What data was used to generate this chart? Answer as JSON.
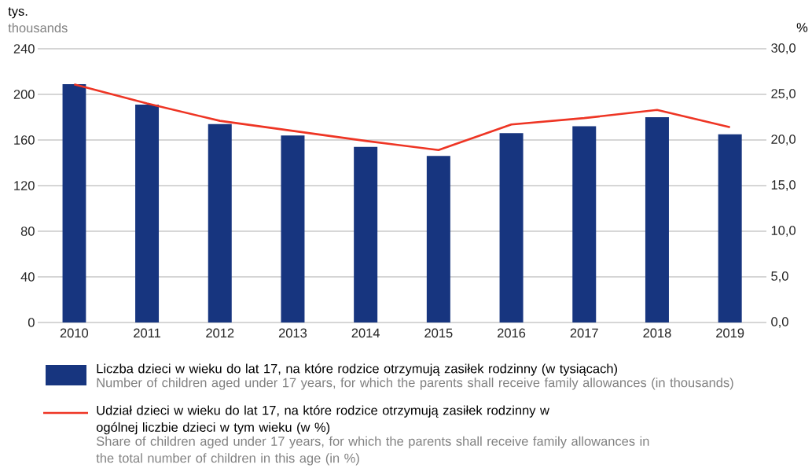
{
  "chart_data": {
    "type": "bar",
    "categories": [
      "2010",
      "2011",
      "2012",
      "2013",
      "2014",
      "2015",
      "2016",
      "2017",
      "2018",
      "2019"
    ],
    "series": [
      {
        "name": "Liczba dzieci w wieku do lat 17, na które rodzice otrzymują zasiłek rodzinny (w tysiącach)",
        "color": "#17357f",
        "values": [
          209,
          191,
          174,
          164,
          154,
          146,
          166,
          172,
          180,
          165
        ]
      },
      {
        "name": "Udział dzieci w wieku do lat 17, na które rodzice otrzymują zasiłek rodzinny w ogólnej liczbie dzieci w tym wieku (w %)",
        "type": "line",
        "axis": "y2",
        "color": "#ee3524",
        "values": [
          26.1,
          24.0,
          22.1,
          21.0,
          19.9,
          18.9,
          21.7,
          22.4,
          23.3,
          21.4
        ]
      }
    ],
    "ylabel": "tys.",
    "y2label": "%",
    "ylim": [
      0,
      240
    ],
    "yticks": [
      0,
      40,
      80,
      120,
      160,
      200,
      240
    ],
    "y2lim": [
      0,
      30
    ],
    "y2ticks": [
      {
        "value": 0,
        "label": "0,0"
      },
      {
        "value": 5,
        "label": "5,0"
      },
      {
        "value": 10,
        "label": "10,0"
      },
      {
        "value": 15,
        "label": "15,0"
      },
      {
        "value": 20,
        "label": "20,0"
      },
      {
        "value": 25,
        "label": "25,0"
      },
      {
        "value": 30,
        "label": "30,0"
      }
    ],
    "grid": "y",
    "legend": "bottom",
    "annotations": [
      "thousands",
      "Number of children aged under 17 years, for which the parents shall receive family allowances (in thousands)",
      "Share of children aged under 17 years, for which the parents shall receive family allowances in the total number of children in this age (in %)"
    ]
  }
}
